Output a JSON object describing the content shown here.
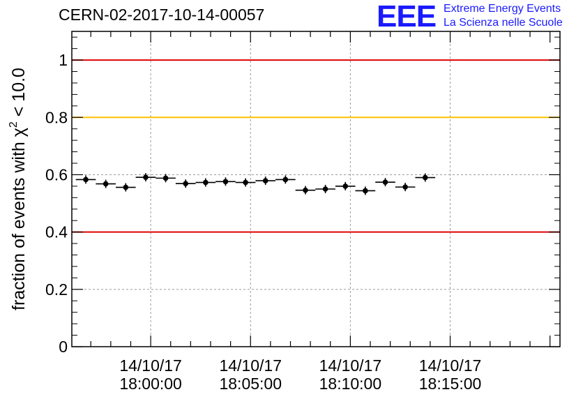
{
  "header": {
    "run_title": "CERN-02-2017-10-14-00057",
    "logo_text": "EEE",
    "logo_line1": "Extreme Energy Events",
    "logo_line2": "La Scienza nelle Scuole"
  },
  "colors": {
    "logo": "#1a1aff",
    "red_line": "#e00000",
    "yellow_line": "#ffc000",
    "grid": "#9a9a9a",
    "marker": "#000000"
  },
  "chart_data": {
    "type": "scatter",
    "title": "CERN-02-2017-10-14-00057",
    "xlabel": "",
    "ylabel": "fraction of events with χ² < 10.0",
    "ylabel_parts": {
      "prefix": "fraction of events with χ",
      "sup": "2",
      "suffix": " < 10.0"
    },
    "x_axis": "time",
    "xlim_seconds_relative_to_first_tick": [
      -237,
      1230
    ],
    "ylim": [
      0,
      1.1
    ],
    "y_ticks": [
      0,
      0.2,
      0.4,
      0.6,
      0.8,
      1
    ],
    "y_tick_labels": [
      "0",
      "0.2",
      "0.4",
      "0.6",
      "0.8",
      "1"
    ],
    "x_ticks": [
      {
        "date": "14/10/17",
        "time": "18:00:00"
      },
      {
        "date": "14/10/17",
        "time": "18:05:00"
      },
      {
        "date": "14/10/17",
        "time": "18:10:00"
      },
      {
        "date": "14/10/17",
        "time": "18:15:00"
      }
    ],
    "grid": true,
    "reference_lines": [
      {
        "y": 1.0,
        "color": "#e00000"
      },
      {
        "y": 0.8,
        "color": "#ffc000"
      },
      {
        "y": 0.4,
        "color": "#e00000"
      }
    ],
    "bin_width_seconds": 60,
    "points": [
      {
        "time": "17:56:45",
        "y": 0.583
      },
      {
        "time": "17:57:45",
        "y": 0.568
      },
      {
        "time": "17:58:45",
        "y": 0.556
      },
      {
        "time": "17:59:45",
        "y": 0.591
      },
      {
        "time": "18:00:45",
        "y": 0.588
      },
      {
        "time": "18:01:45",
        "y": 0.569
      },
      {
        "time": "18:02:45",
        "y": 0.573
      },
      {
        "time": "18:03:45",
        "y": 0.576
      },
      {
        "time": "18:04:45",
        "y": 0.573
      },
      {
        "time": "18:05:45",
        "y": 0.579
      },
      {
        "time": "18:06:45",
        "y": 0.583
      },
      {
        "time": "18:07:45",
        "y": 0.546
      },
      {
        "time": "18:08:45",
        "y": 0.55
      },
      {
        "time": "18:09:45",
        "y": 0.56
      },
      {
        "time": "18:10:45",
        "y": 0.544
      },
      {
        "time": "18:11:45",
        "y": 0.574
      },
      {
        "time": "18:12:45",
        "y": 0.557
      },
      {
        "time": "18:13:45",
        "y": 0.59
      }
    ]
  }
}
